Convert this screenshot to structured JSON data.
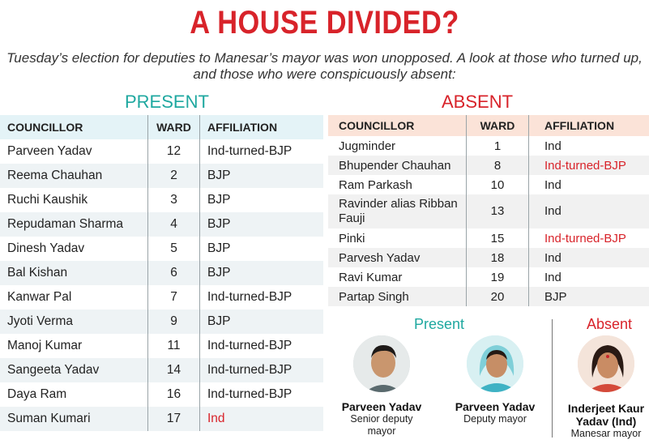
{
  "headline": "A HOUSE DIVIDED?",
  "intro": "Tuesday’s election for deputies to Manesar’s mayor was won unopposed. A look at those who turned up, and those who were conspicuously absent:",
  "present": {
    "title": "PRESENT",
    "headers": [
      "COUNCILLOR",
      "WARD",
      "AFFILIATION"
    ],
    "rows": [
      {
        "name": "Parveen Yadav",
        "ward": "12",
        "affiliation": "Ind-turned-BJP"
      },
      {
        "name": "Reema Chauhan",
        "ward": "2",
        "affiliation": "BJP"
      },
      {
        "name": "Ruchi Kaushik",
        "ward": "3",
        "affiliation": "BJP"
      },
      {
        "name": "Repudaman Sharma",
        "ward": "4",
        "affiliation": "BJP"
      },
      {
        "name": "Dinesh Yadav",
        "ward": "5",
        "affiliation": "BJP"
      },
      {
        "name": "Bal Kishan",
        "ward": "6",
        "affiliation": "BJP"
      },
      {
        "name": "Kanwar Pal",
        "ward": "7",
        "affiliation": "Ind-turned-BJP"
      },
      {
        "name": "Jyoti Verma",
        "ward": "9",
        "affiliation": "BJP"
      },
      {
        "name": "Manoj Kumar",
        "ward": "11",
        "affiliation": "Ind-turned-BJP"
      },
      {
        "name": "Sangeeta Yadav",
        "ward": "14",
        "affiliation": "Ind-turned-BJP"
      },
      {
        "name": "Daya Ram",
        "ward": "16",
        "affiliation": "Ind-turned-BJP"
      },
      {
        "name": "Suman Kumari",
        "ward": "17",
        "affiliation": "Ind"
      }
    ]
  },
  "absent": {
    "title": "ABSENT",
    "headers": [
      "COUNCILLOR",
      "WARD",
      "AFFILIATION"
    ],
    "rows": [
      {
        "name": "Jugminder",
        "ward": "1",
        "affiliation": "Ind"
      },
      {
        "name": "Bhupender Chauhan",
        "ward": "8",
        "affiliation": "Ind-turned-BJP"
      },
      {
        "name": "Ram Parkash",
        "ward": "10",
        "affiliation": "Ind"
      },
      {
        "name": "Ravinder alias Ribban Fauji",
        "ward": "13",
        "affiliation": "Ind"
      },
      {
        "name": "Pinki",
        "ward": "15",
        "affiliation": "Ind-turned-BJP"
      },
      {
        "name": "Parvesh Yadav",
        "ward": "18",
        "affiliation": "Ind"
      },
      {
        "name": "Ravi Kumar",
        "ward": "19",
        "affiliation": "Ind"
      },
      {
        "name": "Partap Singh",
        "ward": "20",
        "affiliation": "BJP"
      }
    ]
  },
  "photos": {
    "present_label": "Present",
    "absent_label": "Absent",
    "people": [
      {
        "name": "Parveen Yadav",
        "role": "Senior deputy mayor"
      },
      {
        "name": "Parveen Yadav",
        "role": "Deputy mayor"
      },
      {
        "name": "Inderjeet Kaur Yadav (Ind)",
        "role": "Manesar mayor"
      }
    ]
  },
  "colors": {
    "headline": "#d8232a",
    "present_accent": "#1fa8a0",
    "absent_accent": "#d8232a"
  }
}
